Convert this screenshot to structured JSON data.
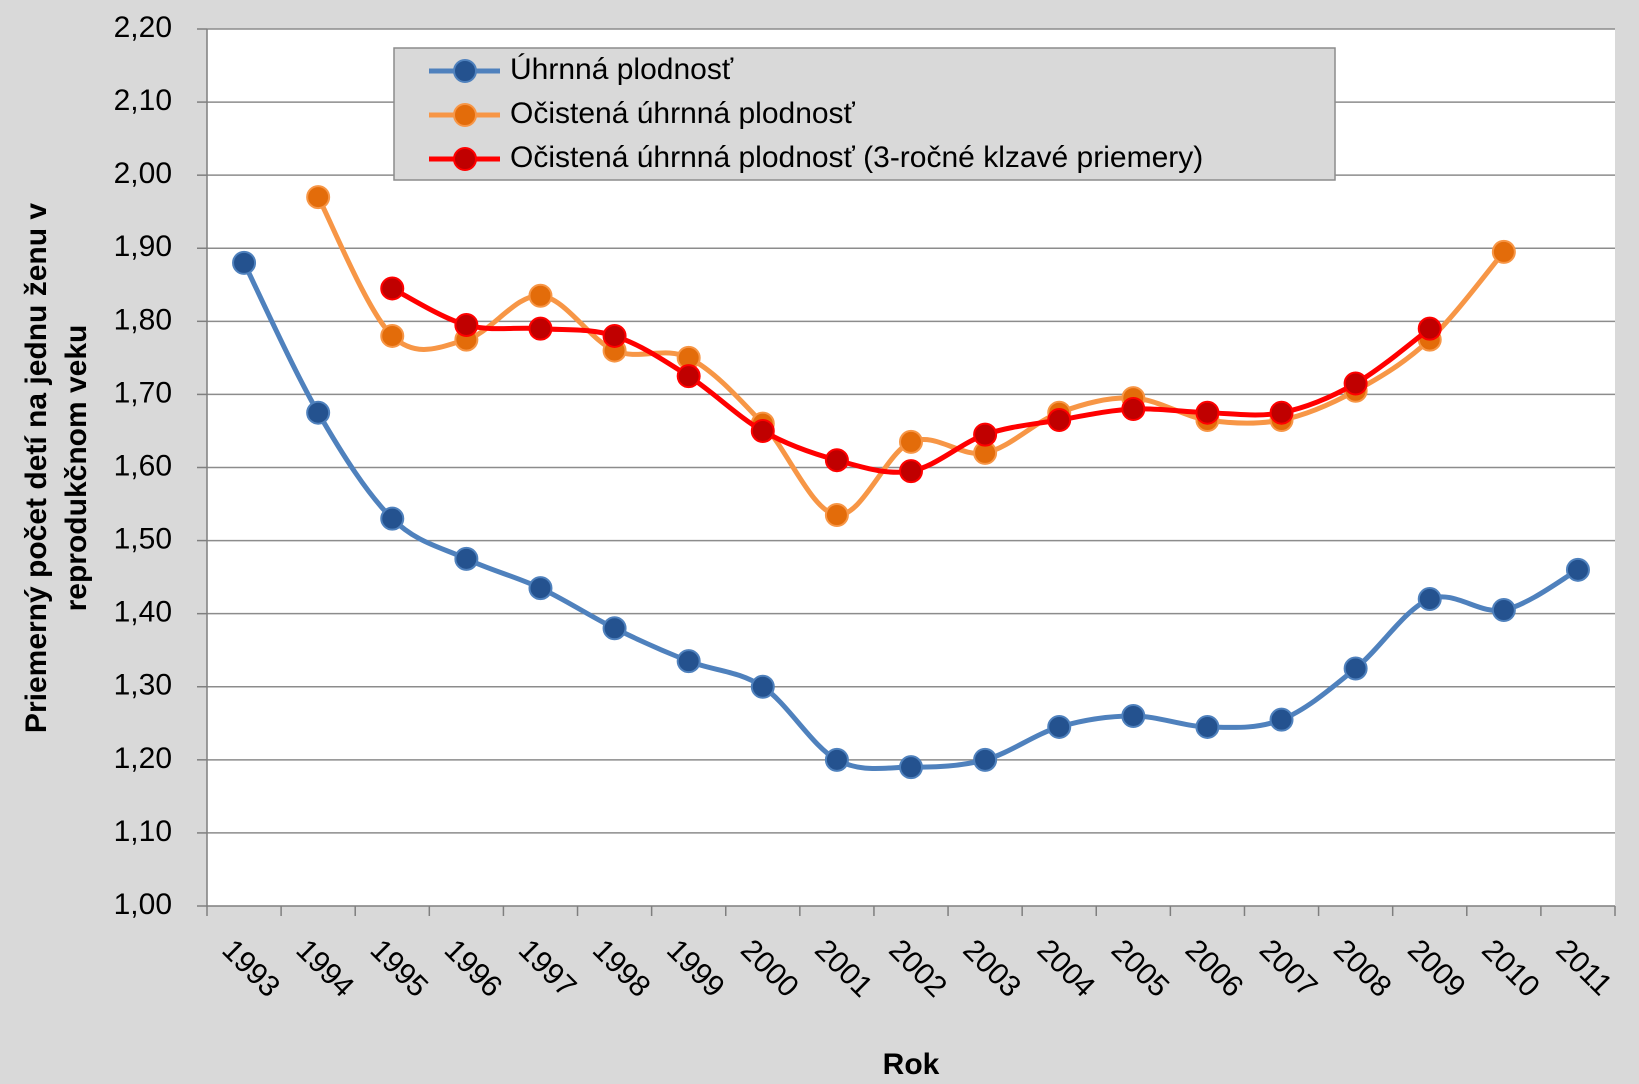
{
  "chart_data": {
    "type": "line",
    "x_label": "Rok",
    "y_label": [
      "Priemerný počet detí na jednu ženu v",
      "reprodukčnom veku"
    ],
    "categories": [
      "1993",
      "1994",
      "1995",
      "1996",
      "1997",
      "1998",
      "1999",
      "2000",
      "2001",
      "2002",
      "2003",
      "2004",
      "2005",
      "2006",
      "2007",
      "2008",
      "2009",
      "2010",
      "2011"
    ],
    "series": [
      {
        "name": "Úhrnná plodnosť",
        "color": "#4f81bd",
        "marker_color": "#24528f",
        "values": [
          1.88,
          1.675,
          1.53,
          1.475,
          1.435,
          1.38,
          1.335,
          1.3,
          1.2,
          1.19,
          1.2,
          1.245,
          1.26,
          1.245,
          1.255,
          1.325,
          1.42,
          1.405,
          1.46
        ]
      },
      {
        "name": "Očistená úhrnná plodnosť",
        "color": "#f79646",
        "marker_color": "#e36c0a",
        "values": [
          null,
          1.97,
          1.78,
          1.775,
          1.835,
          1.76,
          1.75,
          1.66,
          1.535,
          1.635,
          1.62,
          1.675,
          1.695,
          1.665,
          1.665,
          1.705,
          1.775,
          1.895,
          null
        ]
      },
      {
        "name": "Očistená úhrnná plodnosť (3-ročné klzavé priemery)",
        "color": "#ff0000",
        "marker_color": "#c00000",
        "values": [
          null,
          null,
          1.845,
          1.795,
          1.79,
          1.78,
          1.725,
          1.65,
          1.61,
          1.595,
          1.645,
          1.665,
          1.68,
          1.675,
          1.675,
          1.715,
          1.79,
          null,
          null
        ]
      }
    ],
    "ylim": [
      1.0,
      2.2
    ],
    "yticks": [
      {
        "value": 1.0,
        "label": "1,00"
      },
      {
        "value": 1.1,
        "label": "1,10"
      },
      {
        "value": 1.2,
        "label": "1,20"
      },
      {
        "value": 1.3,
        "label": "1,30"
      },
      {
        "value": 1.4,
        "label": "1,40"
      },
      {
        "value": 1.5,
        "label": "1,50"
      },
      {
        "value": 1.6,
        "label": "1,60"
      },
      {
        "value": 1.7,
        "label": "1,70"
      },
      {
        "value": 1.8,
        "label": "1,80"
      },
      {
        "value": 1.9,
        "label": "1,90"
      },
      {
        "value": 2.0,
        "label": "2,00"
      },
      {
        "value": 2.1,
        "label": "2,10"
      },
      {
        "value": 2.2,
        "label": "2,20"
      }
    ],
    "grid": true,
    "smooth": true,
    "legend": "top"
  }
}
